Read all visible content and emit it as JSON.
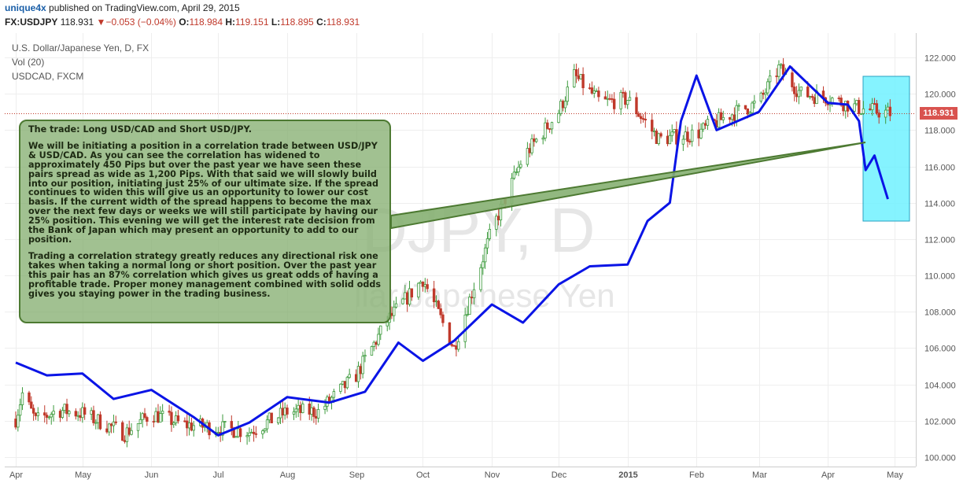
{
  "header": {
    "author": "unique4x",
    "published_text": "published on TradingView.com, April 29, 2015",
    "symbol": "FX:USDJPY",
    "last": "118.931",
    "change_arrow": "▼",
    "change": "−0.053 (−0.04%)",
    "o_label": "O:",
    "o_value": "118.984",
    "h_label": "H:",
    "h_value": "119.151",
    "l_label": "L:",
    "l_value": "118.895",
    "c_label": "C:",
    "c_value": "118.931"
  },
  "legend": {
    "line1": "U.S. Dollar/Japanese Yen, D, FX",
    "line2": "Vol (20)",
    "line3": "USDCAD, FXCM"
  },
  "watermark": {
    "big": "DJPY, D",
    "small": "llar/Japanese Yen"
  },
  "note": {
    "p1": "The trade:   Long USD/CAD and Short USD/JPY.",
    "p2": "We will be initiating a position in a correlation trade between USD/JPY & USD/CAD.  As you can see the correlation has widened to approximately 450 Pips but over the past year we have seen these pairs spread as wide as 1,200 Pips.  With that said we will slowly build into our position, initiating just 25% of our ultimate size.  If the spread continues to widen this will give us an opportunity to lower our cost basis.  If the current width of the spread happens to become the max over the next few days or weeks we will still participate by having our 25% position.  This evening we will get the interest rate decision from the Bank of Japan which may present an opportunity to add to our position.",
    "p3": "Trading a correlation strategy greatly reduces any directional risk one takes when taking a normal long or short position.  Over the past year this pair has an 87% correlation which gives us great odds of having a profitable trade.  Proper money management combined with solid odds gives you staying power in the trading business."
  },
  "price_tag": "118.931",
  "colors": {
    "up": "#3c9a3c",
    "down": "#c0392b",
    "overlay_line": "#0a14e6",
    "highlight": "#66f0ff",
    "note_bg": "#86b072",
    "arrow": "#4d7a32"
  },
  "chart_data": {
    "type": "candlestick",
    "title": "U.S. Dollar/Japanese Yen, D, FX",
    "y_ticks": [
      "100.000",
      "102.000",
      "104.000",
      "106.000",
      "108.000",
      "110.000",
      "112.000",
      "114.000",
      "116.000",
      "118.000",
      "120.000",
      "122.000"
    ],
    "x_ticks": [
      "Apr",
      "May",
      "Jun",
      "Jul",
      "Aug",
      "Sep",
      "Oct",
      "Nov",
      "Dec",
      "2015",
      "Feb",
      "Mar",
      "Apr",
      "May"
    ],
    "ylim": [
      99.5,
      123.3
    ],
    "usdjpy_approx_path": [
      {
        "date": "2014-04-01",
        "close": 102.1
      },
      {
        "date": "2014-04-04",
        "close": 103.5
      },
      {
        "date": "2014-04-10",
        "close": 102.0
      },
      {
        "date": "2014-04-20",
        "close": 102.6
      },
      {
        "date": "2014-05-01",
        "close": 102.4
      },
      {
        "date": "2014-05-20",
        "close": 101.3
      },
      {
        "date": "2014-06-01",
        "close": 102.4
      },
      {
        "date": "2014-06-15",
        "close": 101.8
      },
      {
        "date": "2014-07-01",
        "close": 101.6
      },
      {
        "date": "2014-07-15",
        "close": 101.4
      },
      {
        "date": "2014-08-01",
        "close": 102.5
      },
      {
        "date": "2014-08-15",
        "close": 102.5
      },
      {
        "date": "2014-09-01",
        "close": 104.5
      },
      {
        "date": "2014-09-15",
        "close": 107.5
      },
      {
        "date": "2014-10-01",
        "close": 109.8
      },
      {
        "date": "2014-10-15",
        "close": 106.0
      },
      {
        "date": "2014-11-01",
        "close": 112.5
      },
      {
        "date": "2014-11-15",
        "close": 116.5
      },
      {
        "date": "2014-12-01",
        "close": 119.0
      },
      {
        "date": "2014-12-08",
        "close": 121.0
      },
      {
        "date": "2014-12-20",
        "close": 119.5
      },
      {
        "date": "2015-01-01",
        "close": 119.7
      },
      {
        "date": "2015-01-15",
        "close": 117.5
      },
      {
        "date": "2015-02-01",
        "close": 117.8
      },
      {
        "date": "2015-02-15",
        "close": 118.8
      },
      {
        "date": "2015-03-01",
        "close": 119.5
      },
      {
        "date": "2015-03-10",
        "close": 121.4
      },
      {
        "date": "2015-03-20",
        "close": 120.0
      },
      {
        "date": "2015-04-01",
        "close": 119.8
      },
      {
        "date": "2015-04-15",
        "close": 119.2
      },
      {
        "date": "2015-04-29",
        "close": 118.931
      }
    ],
    "usdcad_overlay_approx": [
      {
        "date": "2014-04-01",
        "y": 105.2
      },
      {
        "date": "2014-04-15",
        "y": 104.5
      },
      {
        "date": "2014-05-01",
        "y": 104.6
      },
      {
        "date": "2014-05-15",
        "y": 103.2
      },
      {
        "date": "2014-06-01",
        "y": 103.7
      },
      {
        "date": "2014-06-20",
        "y": 102.2
      },
      {
        "date": "2014-07-01",
        "y": 101.2
      },
      {
        "date": "2014-07-15",
        "y": 101.9
      },
      {
        "date": "2014-08-01",
        "y": 103.3
      },
      {
        "date": "2014-08-20",
        "y": 103.0
      },
      {
        "date": "2014-09-05",
        "y": 103.6
      },
      {
        "date": "2014-09-20",
        "y": 106.3
      },
      {
        "date": "2014-10-01",
        "y": 105.3
      },
      {
        "date": "2014-10-15",
        "y": 106.4
      },
      {
        "date": "2014-11-01",
        "y": 108.4
      },
      {
        "date": "2014-11-15",
        "y": 107.4
      },
      {
        "date": "2014-12-01",
        "y": 109.5
      },
      {
        "date": "2014-12-15",
        "y": 110.5
      },
      {
        "date": "2015-01-01",
        "y": 110.6
      },
      {
        "date": "2015-01-10",
        "y": 113.0
      },
      {
        "date": "2015-01-20",
        "y": 114.0
      },
      {
        "date": "2015-01-25",
        "y": 118.5
      },
      {
        "date": "2015-02-01",
        "y": 121.0
      },
      {
        "date": "2015-02-10",
        "y": 118.0
      },
      {
        "date": "2015-03-01",
        "y": 119.0
      },
      {
        "date": "2015-03-15",
        "y": 121.5
      },
      {
        "date": "2015-04-01",
        "y": 119.5
      },
      {
        "date": "2015-04-10",
        "y": 119.4
      },
      {
        "date": "2015-04-15",
        "y": 118.5
      },
      {
        "date": "2015-04-18",
        "y": 115.8
      },
      {
        "date": "2015-04-22",
        "y": 116.6
      },
      {
        "date": "2015-04-28",
        "y": 114.2
      }
    ]
  }
}
